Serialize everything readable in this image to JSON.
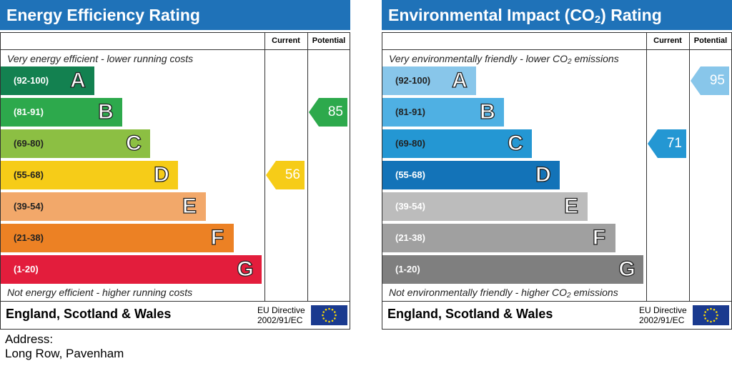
{
  "chart_data": [
    {
      "type": "bar",
      "title": "Energy Efficiency Rating",
      "columns": [
        "Current",
        "Potential"
      ],
      "top_note": "Very energy efficient - lower running costs",
      "bottom_note": "Not energy efficient - higher running costs",
      "bands": [
        {
          "range": "(92-100)",
          "letter": "A",
          "color": "#138150"
        },
        {
          "range": "(81-91)",
          "letter": "B",
          "color": "#2da94c"
        },
        {
          "range": "(69-80)",
          "letter": "C",
          "color": "#8cbf43"
        },
        {
          "range": "(55-68)",
          "letter": "D",
          "color": "#f6cc18"
        },
        {
          "range": "(39-54)",
          "letter": "E",
          "color": "#f2a86a"
        },
        {
          "range": "(21-38)",
          "letter": "F",
          "color": "#ec8124"
        },
        {
          "range": "(1-20)",
          "letter": "G",
          "color": "#e31d3c"
        }
      ],
      "current": {
        "value": 56,
        "color": "#f6cc18"
      },
      "potential": {
        "value": 85,
        "color": "#2da94c"
      },
      "footer": "England, Scotland & Wales",
      "directive_line1": "EU Directive",
      "directive_line2": "2002/91/EC"
    },
    {
      "type": "bar",
      "title": "Environmental Impact (CO",
      "title_sub": "2",
      "title_end": ") Rating",
      "columns": [
        "Current",
        "Potential"
      ],
      "top_note": "Very environmentally friendly - lower CO",
      "top_note_sub": "2",
      "top_note_end": " emissions",
      "bottom_note": "Not environmentally friendly - higher CO",
      "bottom_note_sub": "2",
      "bottom_note_end": " emissions",
      "bands": [
        {
          "range": "(92-100)",
          "letter": "A",
          "color": "#88c6ea"
        },
        {
          "range": "(81-91)",
          "letter": "B",
          "color": "#4fb0e3"
        },
        {
          "range": "(69-80)",
          "letter": "C",
          "color": "#2497d3"
        },
        {
          "range": "(55-68)",
          "letter": "D",
          "color": "#1373b8"
        },
        {
          "range": "(39-54)",
          "letter": "E",
          "color": "#bcbcbc"
        },
        {
          "range": "(21-38)",
          "letter": "F",
          "color": "#a0a0a0"
        },
        {
          "range": "(1-20)",
          "letter": "G",
          "color": "#7f7f7f"
        }
      ],
      "current": {
        "value": 71,
        "color": "#2497d3"
      },
      "potential": {
        "value": 95,
        "color": "#88c6ea"
      },
      "footer": "England, Scotland & Wales",
      "directive_line1": "EU Directive",
      "directive_line2": "2002/91/EC"
    }
  ],
  "address": {
    "label": "Address:",
    "value": "Long Row, Pavenham"
  }
}
